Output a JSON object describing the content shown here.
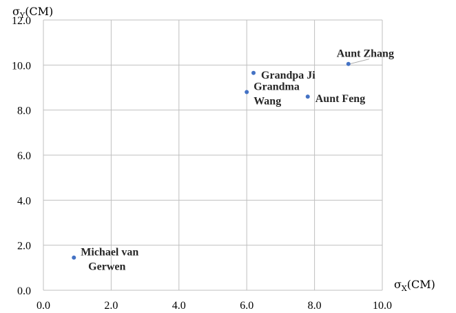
{
  "chart_data": {
    "type": "scatter",
    "title": "",
    "xlabel": {
      "base": "σ",
      "sub": "X",
      "unit": "(CM)"
    },
    "ylabel": {
      "base": "σ",
      "sub": "Y",
      "unit": "(CM)"
    },
    "xlim": [
      0,
      10
    ],
    "ylim": [
      0,
      12
    ],
    "xticks": [
      "0.0",
      "2.0",
      "4.0",
      "6.0",
      "8.0",
      "10.0"
    ],
    "yticks": [
      "0.0",
      "2.0",
      "4.0",
      "6.0",
      "8.0",
      "10.0",
      "12.0"
    ],
    "grid": true,
    "marker_color": "#4472C4",
    "grid_color": "#BFBFBF",
    "points": [
      {
        "x": 0.9,
        "y": 1.45,
        "label": [
          "Michael van",
          "Gerwen"
        ]
      },
      {
        "x": 6.0,
        "y": 8.8,
        "label": [
          "Grandma",
          "Wang"
        ]
      },
      {
        "x": 6.2,
        "y": 9.65,
        "label": [
          "Grandpa Ji"
        ]
      },
      {
        "x": 7.8,
        "y": 8.6,
        "label": [
          "Aunt Feng"
        ]
      },
      {
        "x": 9.0,
        "y": 10.05,
        "label": [
          "Aunt Zhang"
        ]
      }
    ]
  }
}
